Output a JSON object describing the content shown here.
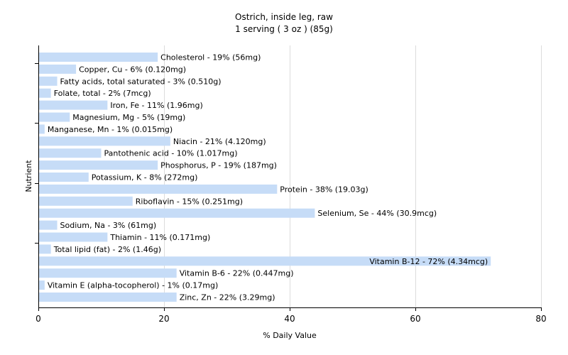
{
  "chart_data": {
    "type": "bar",
    "orientation": "horizontal",
    "title": "Ostrich, inside leg, raw",
    "subtitle": "1 serving ( 3 oz ) (85g)",
    "xlabel": "% Daily Value",
    "ylabel": "Nutrient",
    "xlim": [
      0,
      80
    ],
    "xticks": [
      0,
      20,
      40,
      60,
      80
    ],
    "grid": true,
    "bar_color": "#c6dcf7",
    "categories": [
      "Cholesterol",
      "Copper, Cu",
      "Fatty acids, total saturated",
      "Folate, total",
      "Iron, Fe",
      "Magnesium, Mg",
      "Manganese, Mn",
      "Niacin",
      "Pantothenic acid",
      "Phosphorus, P",
      "Potassium, K",
      "Protein",
      "Riboflavin",
      "Selenium, Se",
      "Sodium, Na",
      "Thiamin",
      "Total lipid (fat)",
      "Vitamin B-12",
      "Vitamin B-6",
      "Vitamin E (alpha-tocopherol)",
      "Zinc, Zn"
    ],
    "values": [
      19,
      6,
      3,
      2,
      11,
      5,
      1,
      21,
      10,
      19,
      8,
      38,
      15,
      44,
      3,
      11,
      2,
      72,
      22,
      1,
      22
    ],
    "labels": [
      "Cholesterol - 19% (56mg)",
      "Copper, Cu - 6% (0.120mg)",
      "Fatty acids, total saturated - 3% (0.510g)",
      "Folate, total - 2% (7mcg)",
      "Iron, Fe - 11% (1.96mg)",
      "Magnesium, Mg - 5% (19mg)",
      "Manganese, Mn - 1% (0.015mg)",
      "Niacin - 21% (4.120mg)",
      "Pantothenic acid - 10% (1.017mg)",
      "Phosphorus, P - 19% (187mg)",
      "Potassium, K - 8% (272mg)",
      "Protein - 38% (19.03g)",
      "Riboflavin - 15% (0.251mg)",
      "Selenium, Se - 44% (30.9mcg)",
      "Sodium, Na - 3% (61mg)",
      "Thiamin - 11% (0.171mg)",
      "Total lipid (fat) - 2% (1.46g)",
      "Vitamin B-12 - 72% (4.34mcg)",
      "Vitamin B-6 - 22% (0.447mg)",
      "Vitamin E (alpha-tocopherol) - 1% (0.17mg)",
      "Zinc, Zn - 22% (3.29mg)"
    ]
  }
}
